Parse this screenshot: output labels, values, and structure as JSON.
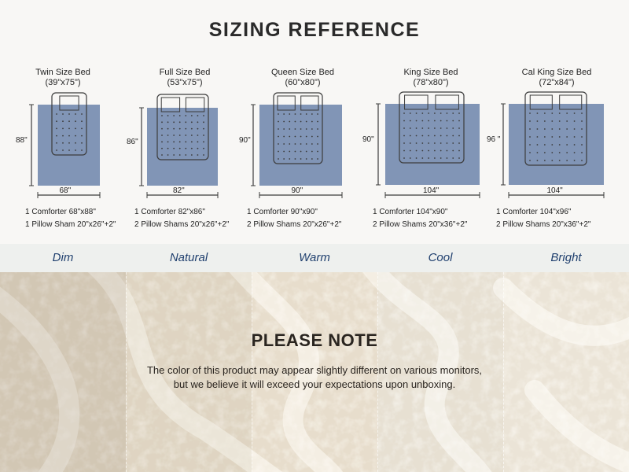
{
  "title": "SIZING REFERENCE",
  "colors": {
    "comforter": "#8195b6",
    "outline": "#3c3c3c",
    "tone_label": "#1f3f6e"
  },
  "beds": [
    {
      "name": "Twin Size Bed",
      "size": "(39\"x75\")",
      "height": "88\"",
      "width": "68\"",
      "line1": "1  Comforter 68\"x88\"",
      "line2": "1 Pillow Sham 20\"x26\"+2\"",
      "pillows": 1
    },
    {
      "name": "Full Size Bed",
      "size": "(53\"x75\")",
      "height": "86\"",
      "width": "82\"",
      "line1": "1 Comforter 82\"x86\"",
      "line2": "2 Pillow Shams 20\"x26\"+2\"",
      "pillows": 2
    },
    {
      "name": "Queen Size Bed",
      "size": "(60\"x80\")",
      "height": "90\"",
      "width": "90\"",
      "line1": "1 Comforter 90\"x90\"",
      "line2": "2 Pillow Shams 20\"x26\"+2\"",
      "pillows": 2
    },
    {
      "name": "King Size Bed",
      "size": "(78\"x80\")",
      "height": "90\"",
      "width": "104\"",
      "line1": "1 Comforter 104\"x90\"",
      "line2": "2 Pillow Shams 20\"x36\"+2\"",
      "pillows": 2
    },
    {
      "name": "Cal King Size Bed",
      "size": "(72\"x84\")",
      "height": "96 \"",
      "width": "104\"",
      "line1": "1 Comforter 104\"x96\"",
      "line2": "2 Pillow Shams 20\"x36\"+2\"",
      "pillows": 2
    }
  ],
  "tones": [
    "Dim",
    "Natural",
    "Warm",
    "Cool",
    "Bright"
  ],
  "note": {
    "heading": "PLEASE NOTE",
    "line1": "The color of this product may appear slightly different on various monitors,",
    "line2": "but we believe it will exceed your expectations upon unboxing."
  }
}
